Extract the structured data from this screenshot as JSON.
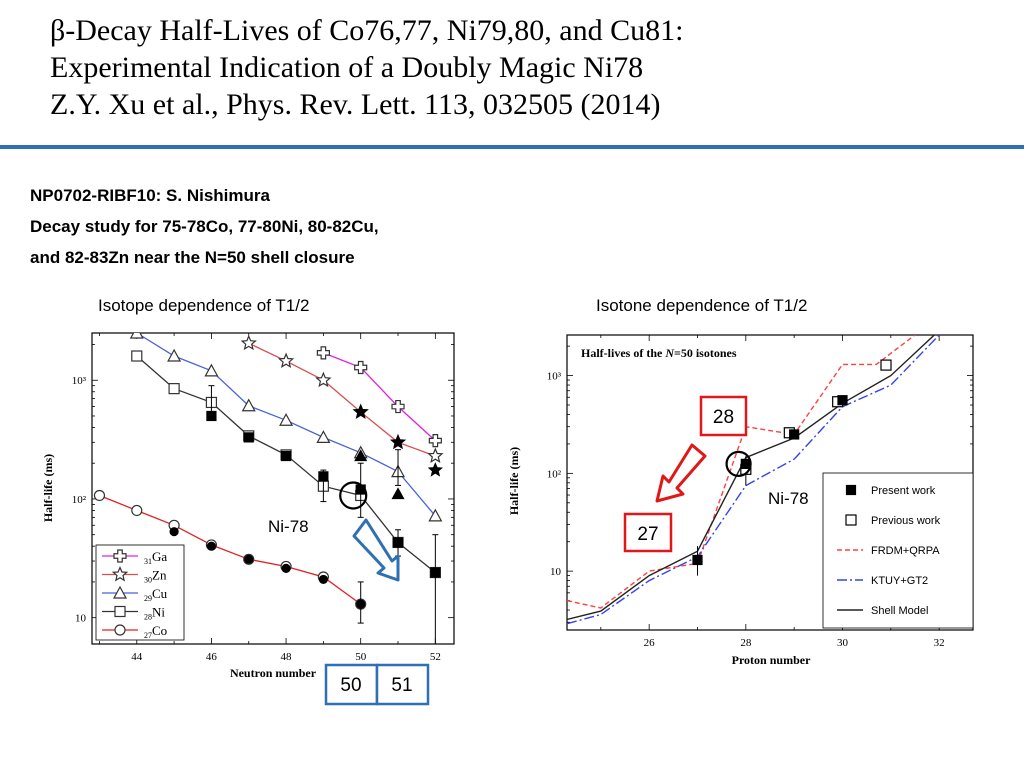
{
  "slide": {
    "title_lines": [
      "β-Decay Half-Lives of Co76,77, Ni79,80, and Cu81:",
      "Experimental Indication of a Doubly Magic Ni78",
      "Z.Y. Xu et al., Phys. Rev. Lett. 113, 032505 (2014)"
    ],
    "experiment_lines": [
      "NP0702-RIBF10: S. Nishimura",
      "Decay study for 75-78Co, 77-80Ni, 80-82Cu,",
      "and 82-83Zn near the N=50 shell closure"
    ],
    "left_caption": "Isotope dependence of T1/2",
    "right_caption": "Isotone dependence of T1/2"
  },
  "annotations": {
    "left_circle_label": "Ni-78",
    "right_circle_label": "Ni-78",
    "box_50": "50",
    "box_51": "51",
    "box_28": "28",
    "box_27": "27"
  },
  "chart_data": [
    {
      "type": "line",
      "title": "",
      "xlabel": "Neutron number",
      "ylabel": "Half-life (ms)",
      "x_ticks": [
        44,
        46,
        48,
        50,
        52
      ],
      "y_tick_labels": [
        "10",
        "10²",
        "10³"
      ],
      "xlim": [
        42.8,
        52.5
      ],
      "ylim": [
        6,
        2500
      ],
      "y_scale": "log",
      "legend_position": "bottom-left",
      "colors": {
        "Ga": "#e020e0",
        "Zn": "#d65050",
        "Cu": "#4a62d8",
        "Ni": "#333333",
        "Co": "#e02020"
      },
      "series": [
        {
          "name": "31Ga",
          "key": "Ga",
          "sub": "31",
          "sym": "Ga",
          "marker": "cross-open",
          "points": [
            [
              49,
              1700
            ],
            [
              50,
              1280
            ],
            [
              51,
              600
            ],
            [
              52,
              310
            ]
          ]
        },
        {
          "name": "30Zn",
          "key": "Zn",
          "sub": "30",
          "sym": "Zn",
          "marker": "star-open",
          "points": [
            [
              47,
              2050
            ],
            [
              48,
              1450
            ],
            [
              49,
              1000
            ],
            [
              50,
              540
            ],
            [
              51,
              300
            ],
            [
              52,
              230
            ]
          ]
        },
        {
          "name": "29Cu",
          "key": "Cu",
          "sub": "29",
          "sym": "Cu",
          "marker": "triangle-open",
          "points": [
            [
              44,
              2500
            ],
            [
              45,
              1600
            ],
            [
              46,
              1200
            ],
            [
              47,
              610
            ],
            [
              48,
              460
            ],
            [
              49,
              330
            ],
            [
              50,
              245
            ],
            [
              51,
              170
            ],
            [
              52,
              72
            ]
          ]
        },
        {
          "name": "28Ni",
          "key": "Ni",
          "sub": "28",
          "sym": "Ni",
          "marker": "square-open",
          "points": [
            [
              44,
              1600
            ],
            [
              45,
              850
            ],
            [
              46,
              650
            ],
            [
              47,
              340
            ],
            [
              48,
              235
            ],
            [
              49,
              128
            ],
            [
              50,
              107
            ],
            [
              51,
              43
            ],
            [
              52,
              24
            ]
          ]
        },
        {
          "name": "27Co",
          "key": "Co",
          "sub": "27",
          "sym": "Co",
          "marker": "circle-open",
          "points": [
            [
              43,
              107
            ],
            [
              44,
              80
            ],
            [
              45,
              60
            ],
            [
              46,
              41
            ],
            [
              47,
              31
            ],
            [
              48,
              27
            ],
            [
              49,
              22
            ],
            [
              50,
              13
            ]
          ]
        }
      ],
      "present_work": [
        {
          "key": "Zn",
          "marker": "star",
          "points": [
            [
              50,
              540
            ],
            [
              51,
              300
            ],
            [
              52,
              175
            ]
          ]
        },
        {
          "key": "Cu",
          "marker": "triangle",
          "points": [
            [
              50,
              230
            ],
            [
              51,
              110
            ]
          ]
        },
        {
          "key": "Ni",
          "marker": "square",
          "points": [
            [
              46,
              500
            ],
            [
              47,
              330
            ],
            [
              48,
              230
            ],
            [
              49,
              155
            ],
            [
              50,
              120
            ],
            [
              51,
              43
            ],
            [
              52,
              24
            ]
          ]
        },
        {
          "key": "Co",
          "marker": "circle",
          "points": [
            [
              45,
              53
            ],
            [
              46,
              40
            ],
            [
              47,
              31
            ],
            [
              48,
              26
            ],
            [
              49,
              21
            ],
            [
              50,
              13
            ]
          ]
        }
      ]
    },
    {
      "type": "line",
      "title": "Half-lives of the N=50 isotones",
      "title_parts": {
        "pre": "Half-lives of the ",
        "n": "N",
        "post": "=50 isotones"
      },
      "xlabel": "Proton number",
      "ylabel": "Half-life (ms)",
      "x_ticks": [
        26,
        28,
        30,
        32
      ],
      "y_tick_labels": [
        "10",
        "10²",
        "10³"
      ],
      "xlim": [
        24.3,
        32.7
      ],
      "ylim": [
        2.5,
        2600
      ],
      "y_scale": "log",
      "legend_position": "bottom-right",
      "legend": [
        "Present work",
        "Previous work",
        "FRDM+QRPA",
        "KTUY+GT2",
        "Shell Model"
      ],
      "colors": {
        "frdm": "#ff4040",
        "ktuy": "#3344ee",
        "shell": "#222222"
      },
      "present_work": [
        [
          27,
          13
        ],
        [
          28,
          125
        ],
        [
          29,
          250
        ],
        [
          30,
          560
        ]
      ],
      "previous_work": [
        [
          28,
          110
        ],
        [
          28.9,
          260
        ],
        [
          29.9,
          540
        ],
        [
          30.9,
          1280
        ]
      ],
      "series": [
        {
          "name": "FRDM+QRPA",
          "style": "dashed",
          "key": "frdm",
          "points": [
            [
              24.3,
              5
            ],
            [
              25,
              4.2
            ],
            [
              26,
              10
            ],
            [
              27,
              12
            ],
            [
              27.5,
              60
            ],
            [
              28,
              300
            ],
            [
              29,
              250
            ],
            [
              30,
              1300
            ],
            [
              30.7,
              1300
            ],
            [
              31.5,
              2600
            ]
          ]
        },
        {
          "name": "KTUY+GT2",
          "style": "dashdot",
          "key": "ktuy",
          "points": [
            [
              24.3,
              2.9
            ],
            [
              25,
              3.6
            ],
            [
              26,
              8
            ],
            [
              27,
              14
            ],
            [
              28,
              75
            ],
            [
              29,
              140
            ],
            [
              30,
              480
            ],
            [
              31,
              800
            ],
            [
              32,
              2600
            ]
          ]
        },
        {
          "name": "Shell Model",
          "style": "solid",
          "key": "shell",
          "points": [
            [
              24.3,
              3.2
            ],
            [
              25,
              3.9
            ],
            [
              26,
              9
            ],
            [
              27,
              16
            ],
            [
              28,
              145
            ],
            [
              29,
              230
            ],
            [
              30,
              520
            ],
            [
              31,
              1000
            ],
            [
              31.9,
              2600
            ]
          ]
        }
      ]
    }
  ]
}
